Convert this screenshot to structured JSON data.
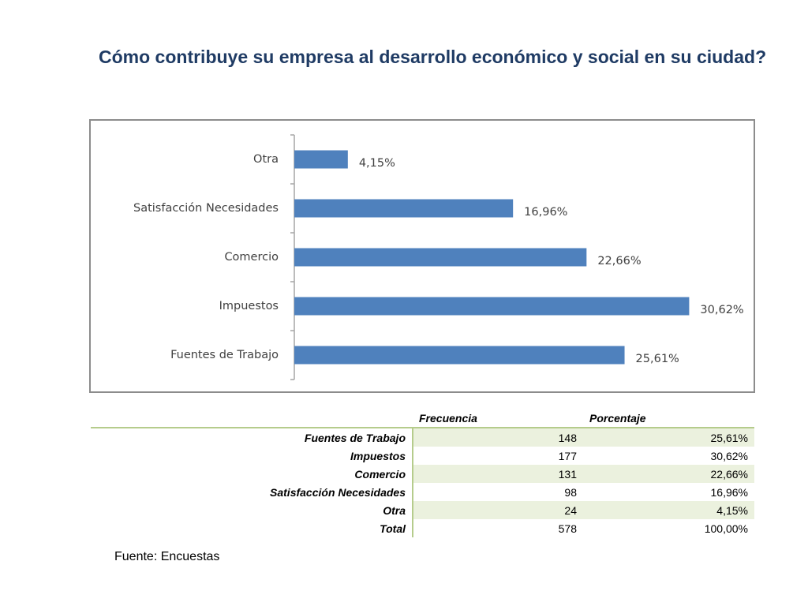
{
  "title": "Cómo contribuye su empresa al desarrollo económico y social en su ciudad?",
  "chart_data": {
    "type": "bar",
    "orientation": "horizontal",
    "categories": [
      "Otra",
      "Satisfacción Necesidades",
      "Comercio",
      "Impuestos",
      "Fuentes de Trabajo"
    ],
    "values": [
      4.15,
      16.96,
      22.66,
      30.62,
      25.61
    ],
    "data_labels": [
      "4,15%",
      "16,96%",
      "22,66%",
      "30,62%",
      "25,61%"
    ],
    "xlim": [
      0,
      35
    ],
    "grid": false,
    "bar_color": "#4f81bd"
  },
  "table": {
    "headers": [
      "",
      "Frecuencia",
      "Porcentaje"
    ],
    "rows": [
      {
        "label": "Fuentes de Trabajo",
        "frecuencia": "148",
        "porcentaje": "25,61%"
      },
      {
        "label": "Impuestos",
        "frecuencia": "177",
        "porcentaje": "30,62%"
      },
      {
        "label": "Comercio",
        "frecuencia": "131",
        "porcentaje": "22,66%"
      },
      {
        "label": "Satisfacción Necesidades",
        "frecuencia": "98",
        "porcentaje": "16,96%"
      },
      {
        "label": "Otra",
        "frecuencia": "24",
        "porcentaje": "4,15%"
      },
      {
        "label": "Total",
        "frecuencia": "578",
        "porcentaje": "100,00%"
      }
    ]
  },
  "source": "Fuente: Encuestas"
}
